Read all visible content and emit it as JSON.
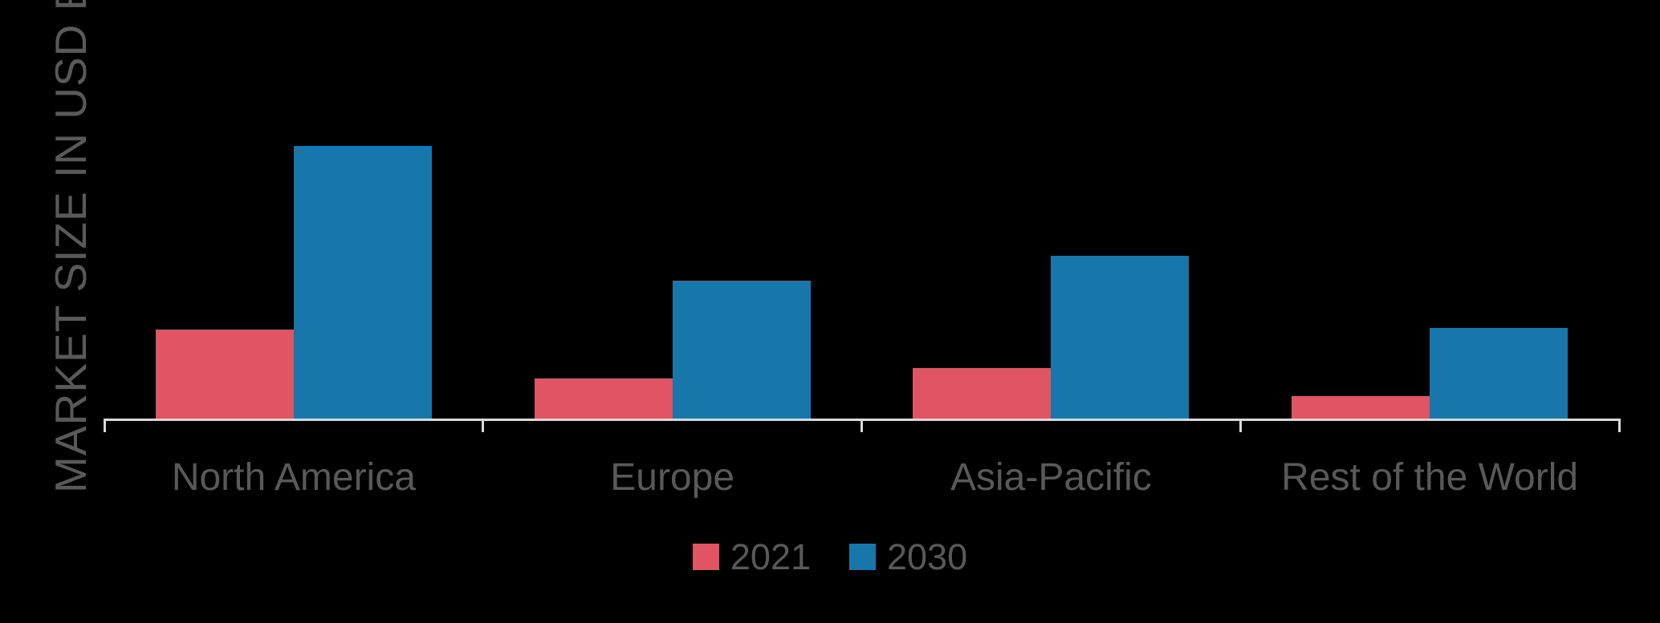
{
  "chart_data": {
    "type": "bar",
    "title": "",
    "categories": [
      "North America",
      "Europe",
      "Asia-Pacific",
      "Rest of the World"
    ],
    "series": [
      {
        "name": "2021",
        "color": "#e05464",
        "values": [
          11.1,
          5.0,
          6.3,
          2.8
        ]
      },
      {
        "name": "2030",
        "color": "#1777ab",
        "values": [
          34.0,
          17.2,
          20.3,
          11.3
        ]
      }
    ],
    "xlabel": "",
    "ylabel": "MARKET SIZE IN USD BN",
    "ylim": [
      0,
      38
    ],
    "grid": false,
    "legend_position": "bottom",
    "colors": {
      "axis": "#d9d9d9",
      "text": "#595959",
      "background": "#000000"
    }
  }
}
